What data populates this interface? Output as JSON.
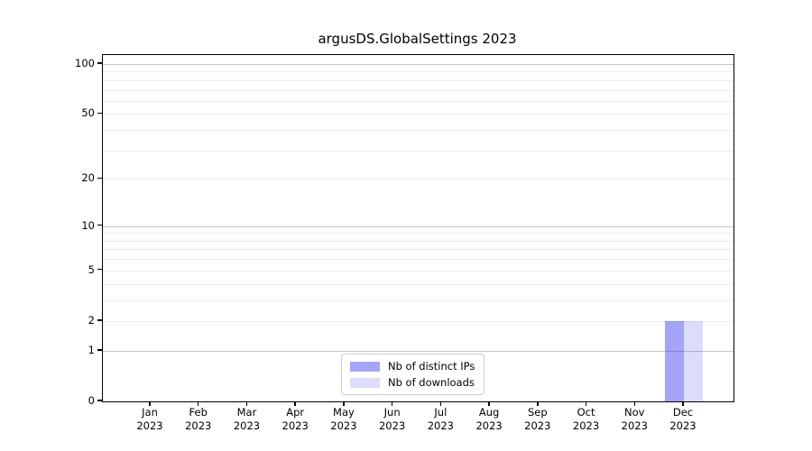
{
  "title": "argusDS.GlobalSettings 2023",
  "chart_data": {
    "type": "bar",
    "title": "argusDS.GlobalSettings 2023",
    "categories": [
      "Jan",
      "Feb",
      "Mar",
      "Apr",
      "May",
      "Jun",
      "Jul",
      "Aug",
      "Sep",
      "Oct",
      "Nov",
      "Dec"
    ],
    "category_year": "2023",
    "series": [
      {
        "name": "Nb of distinct IPs",
        "color": "rgba(40,40,235,0.42)",
        "values": [
          0,
          0,
          0,
          0,
          0,
          0,
          0,
          0,
          0,
          0,
          0,
          2
        ]
      },
      {
        "name": "Nb of downloads",
        "color": "rgba(40,40,235,0.16)",
        "values": [
          0,
          0,
          0,
          0,
          0,
          0,
          0,
          0,
          0,
          0,
          0,
          2
        ]
      }
    ],
    "y_scale": "log1p",
    "ylabel": "",
    "xlabel": "",
    "y_ticks": [
      0,
      1,
      2,
      5,
      10,
      20,
      50,
      100
    ],
    "grid_major": [
      1,
      10,
      100
    ],
    "grid_minor": [
      2,
      3,
      4,
      5,
      6,
      7,
      8,
      9,
      20,
      30,
      40,
      50,
      60,
      70,
      80,
      90
    ],
    "ylim": [
      0,
      115
    ],
    "grid": "on",
    "legend_position": "lower center"
  },
  "colors": {
    "grid_major": "#c6c6c6",
    "grid_minor": "#ececec",
    "axis": "#000000",
    "text": "#000000",
    "legend_border": "#cccccc"
  }
}
